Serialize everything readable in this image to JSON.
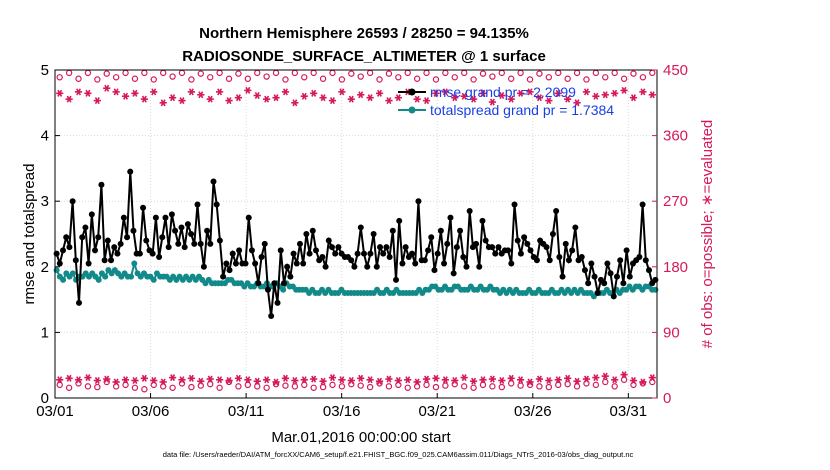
{
  "chart_data": {
    "type": "line",
    "title_line1": "Northern Hemisphere 26593 / 28250 = 94.135%",
    "title_line2": "RADIOSONDE_SURFACE_ALTIMETER @ 1 surface",
    "xlabel": "Mar.01,2016 00:00:00 start",
    "ylabel_left": "rmse and totalspread",
    "ylabel_right": "# of obs: o=possible; ∗=evaluated",
    "footnote": "data file: /Users/raeder/DAI/ATM_forcXX/CAM6_setup/f.e21.FHIST_BGC.f09_025.CAM6assim.011/Diags_NTrS_2016-03/obs_diag_output.nc",
    "xlim": [
      0,
      31.5
    ],
    "ylim_left": [
      0,
      5
    ],
    "ylim_right": [
      0,
      450
    ],
    "x_ticks": [
      0,
      5,
      10,
      15,
      20,
      25,
      30
    ],
    "x_tick_labels": [
      "03/01",
      "03/06",
      "03/11",
      "03/16",
      "03/21",
      "03/26",
      "03/31"
    ],
    "y_ticks_left": [
      "0",
      "1",
      "2",
      "3",
      "4",
      "5"
    ],
    "y_ticks_right": [
      "0",
      "90",
      "180",
      "270",
      "360",
      "450"
    ],
    "grid": true,
    "colors": {
      "rmse": "#000000",
      "spread": "#138a8a",
      "obs": "#d6195a",
      "legend_text": "#1a3fe6"
    },
    "series": [
      {
        "name": "rmse grand pr = 2.2099",
        "axis": "left",
        "values": [
          2.2,
          2.05,
          2.25,
          2.45,
          2.3,
          3.0,
          2.1,
          1.45,
          2.45,
          2.6,
          2.05,
          2.8,
          2.25,
          2.45,
          3.25,
          2.1,
          2.4,
          2.1,
          2.3,
          2.2,
          2.35,
          2.75,
          2.45,
          3.45,
          2.55,
          2.2,
          2.2,
          2.9,
          2.4,
          2.25,
          2.2,
          2.75,
          2.15,
          2.45,
          2.75,
          2.3,
          2.8,
          2.55,
          2.35,
          2.6,
          2.3,
          2.65,
          2.5,
          2.35,
          2.95,
          2.35,
          2.0,
          2.55,
          2.35,
          3.3,
          2.95,
          2.4,
          1.85,
          2.05,
          1.95,
          2.2,
          2.05,
          2.25,
          2.05,
          2.05,
          2.75,
          2.25,
          2.05,
          1.75,
          2.15,
          2.35,
          1.65,
          1.25,
          1.75,
          1.45,
          2.25,
          1.75,
          2.0,
          1.85,
          2.2,
          2.05,
          2.35,
          2.05,
          2.5,
          2.2,
          2.55,
          2.25,
          2.1,
          2.15,
          2.0,
          2.4,
          2.3,
          2.2,
          2.3,
          2.2,
          2.15,
          2.15,
          2.1,
          2.0,
          2.2,
          2.6,
          2.2,
          2.0,
          2.2,
          2.5,
          2.0,
          2.3,
          2.2,
          2.3,
          2.15,
          2.55,
          1.8,
          2.7,
          2.05,
          2.3,
          2.15,
          2.2,
          2.05,
          3.0,
          2.1,
          2.1,
          2.25,
          2.45,
          1.95,
          2.2,
          2.55,
          2.05,
          2.35,
          2.75,
          1.9,
          2.3,
          2.55,
          2.15,
          2.0,
          2.85,
          2.3,
          2.35,
          2.0,
          2.7,
          2.4,
          2.3,
          2.3,
          2.2,
          2.3,
          2.2,
          2.25,
          2.25,
          2.05,
          2.95,
          2.4,
          2.2,
          2.45,
          2.35,
          2.25,
          2.15,
          2.1,
          2.4,
          2.35,
          2.3,
          2.1,
          2.5,
          2.85,
          2.15,
          1.85,
          2.35,
          2.1,
          2.25,
          2.6,
          2.1,
          2.15,
          1.95,
          1.75,
          2.05,
          1.85,
          1.6,
          1.8,
          1.75,
          2.05,
          1.9,
          1.55,
          1.85,
          2.1,
          1.75,
          2.25,
          1.85,
          2.05,
          2.1,
          2.15,
          2.95,
          2.1,
          1.95,
          1.75,
          1.8
        ]
      },
      {
        "name": "totalspread grand pr = 1.7384",
        "axis": "left",
        "values": [
          1.95,
          1.85,
          1.8,
          1.9,
          1.85,
          1.9,
          1.8,
          1.85,
          1.85,
          1.9,
          1.85,
          1.9,
          1.85,
          1.8,
          1.9,
          1.85,
          1.95,
          1.9,
          1.95,
          1.9,
          1.85,
          1.9,
          1.85,
          1.85,
          2.05,
          1.9,
          1.85,
          1.9,
          1.85,
          1.85,
          1.8,
          1.9,
          1.85,
          1.85,
          1.85,
          1.8,
          1.85,
          1.8,
          1.85,
          1.8,
          1.85,
          1.8,
          1.85,
          1.8,
          1.85,
          1.8,
          1.75,
          1.8,
          1.75,
          1.75,
          1.75,
          1.75,
          1.75,
          1.8,
          1.8,
          1.75,
          1.75,
          1.75,
          1.7,
          1.75,
          1.7,
          1.7,
          1.75,
          1.7,
          1.7,
          1.75,
          1.7,
          1.7,
          1.75,
          1.7,
          1.65,
          1.75,
          1.7,
          1.7,
          1.65,
          1.65,
          1.65,
          1.65,
          1.6,
          1.65,
          1.6,
          1.6,
          1.65,
          1.6,
          1.65,
          1.6,
          1.6,
          1.6,
          1.65,
          1.6,
          1.6,
          1.6,
          1.6,
          1.6,
          1.6,
          1.6,
          1.6,
          1.6,
          1.6,
          1.65,
          1.6,
          1.6,
          1.65,
          1.6,
          1.6,
          1.65,
          1.6,
          1.6,
          1.6,
          1.6,
          1.6,
          1.6,
          1.65,
          1.6,
          1.65,
          1.65,
          1.7,
          1.7,
          1.65,
          1.65,
          1.7,
          1.65,
          1.65,
          1.7,
          1.7,
          1.65,
          1.65,
          1.65,
          1.7,
          1.65,
          1.65,
          1.7,
          1.65,
          1.65,
          1.7,
          1.65,
          1.65,
          1.6,
          1.65,
          1.6,
          1.65,
          1.6,
          1.65,
          1.6,
          1.6,
          1.6,
          1.65,
          1.6,
          1.6,
          1.65,
          1.6,
          1.6,
          1.6,
          1.65,
          1.6,
          1.6,
          1.65,
          1.6,
          1.65,
          1.6,
          1.65,
          1.6,
          1.65,
          1.6,
          1.6,
          1.6,
          1.55,
          1.6,
          1.6,
          1.6,
          1.65,
          1.6,
          1.6,
          1.65,
          1.6,
          1.65,
          1.65,
          1.7,
          1.65,
          1.7,
          1.7,
          1.65,
          1.7,
          1.7,
          1.65,
          1.65
        ]
      },
      {
        "name": "obs possible",
        "axis": "right",
        "marker": "o",
        "values": [
          440,
          446,
          438,
          446,
          437,
          445,
          440,
          446,
          438,
          446,
          437,
          446,
          441,
          446,
          437,
          445,
          440,
          446,
          438,
          445,
          438,
          446,
          441,
          446,
          437,
          446,
          440,
          446,
          438,
          446,
          437,
          445,
          441,
          446,
          437,
          445,
          440,
          446,
          438,
          446,
          437,
          446,
          440,
          446,
          437,
          445,
          441,
          446,
          438,
          446,
          437,
          445,
          440,
          446,
          438,
          446,
          437,
          446,
          440,
          446,
          438,
          445,
          440,
          446
        ]
      },
      {
        "name": "obs evaluated",
        "axis": "right",
        "marker": "*",
        "values": [
          418,
          410,
          420,
          418,
          408,
          425,
          420,
          414,
          418,
          410,
          420,
          405,
          412,
          408,
          420,
          416,
          410,
          420,
          408,
          412,
          422,
          415,
          410,
          412,
          420,
          405,
          414,
          418,
          412,
          408,
          420,
          410,
          416,
          412,
          418,
          408,
          412,
          420,
          410,
          408,
          418,
          420,
          412,
          414,
          410,
          418,
          406,
          415,
          410,
          418,
          420,
          412,
          408,
          418,
          410,
          405,
          420,
          414,
          416,
          418,
          422,
          412,
          420,
          416
        ]
      },
      {
        "name": "obs possible (00Z/12Z)",
        "axis": "right",
        "marker": "o",
        "values": [
          18,
          14,
          20,
          16,
          15,
          22,
          16,
          18,
          14,
          12,
          18,
          16,
          14,
          20,
          15,
          17,
          19,
          14,
          22,
          16,
          18,
          16,
          14,
          19,
          17,
          16,
          18,
          14,
          15,
          18,
          16,
          19,
          17,
          15,
          20,
          16,
          18,
          14,
          16,
          18,
          15,
          17,
          19,
          16,
          14,
          18,
          16,
          15,
          20,
          17,
          18,
          16,
          15,
          18,
          19,
          16,
          20,
          18,
          22,
          16,
          25,
          18,
          20,
          22
        ]
      },
      {
        "name": "obs evaluated (00Z/12Z)",
        "axis": "right",
        "marker": "*",
        "values": [
          25,
          27,
          25,
          28,
          24,
          26,
          22,
          25,
          24,
          27,
          24,
          22,
          28,
          25,
          27,
          23,
          26,
          25,
          24,
          27,
          25,
          23,
          25,
          22,
          27,
          24,
          25,
          26,
          23,
          28,
          25,
          24,
          27,
          25,
          23,
          26,
          24,
          25,
          22,
          26,
          27,
          25,
          24,
          28,
          23,
          25,
          26,
          24,
          27,
          25,
          22,
          26,
          24,
          25,
          27,
          23,
          26,
          28,
          30,
          25,
          32,
          24,
          22,
          28
        ]
      }
    ],
    "legend": [
      {
        "label": "rmse grand pr = 2.2099",
        "color": "#000000"
      },
      {
        "label": "totalspread grand pr = 1.7384",
        "color": "#138a8a"
      }
    ],
    "legend_position": "top-right"
  }
}
